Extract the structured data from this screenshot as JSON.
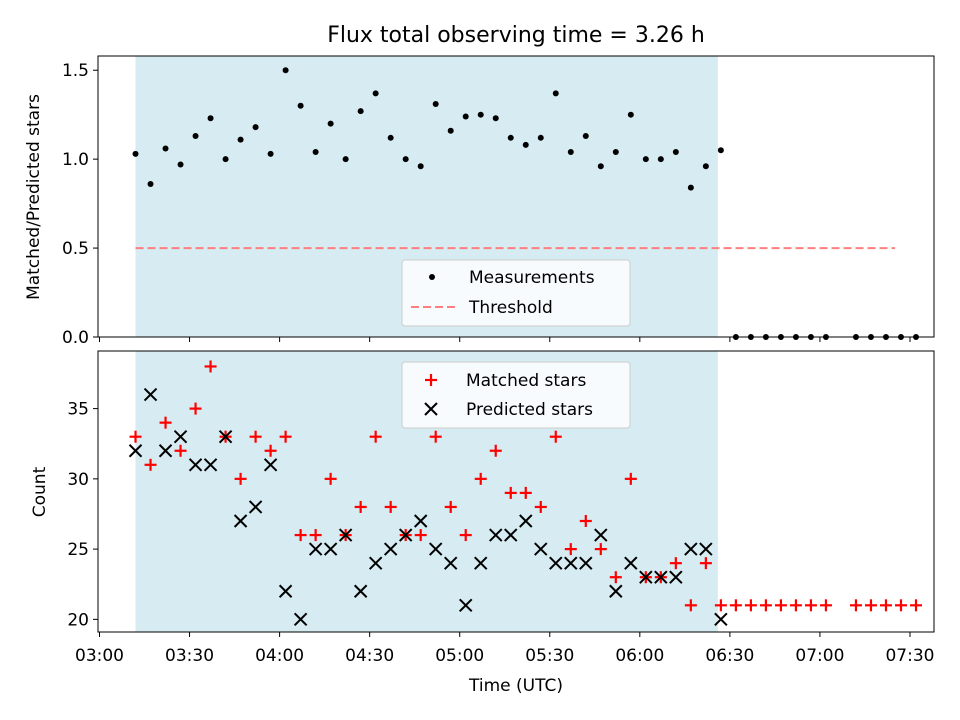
{
  "chart_data": [
    {
      "type": "scatter",
      "title": "Flux total observing time = 3.26 h",
      "xlabel": "",
      "ylabel": "Matched/Predicted stars",
      "ylim": [
        0,
        1.58
      ],
      "yticks": [
        "0.0",
        "0.5",
        "1.0",
        "1.5"
      ],
      "shaded_region_x_minutes": [
        12,
        206
      ],
      "series": [
        {
          "name": "Measurements",
          "marker": "dot",
          "color": "#000000",
          "x": [
            12,
            17,
            22,
            27,
            32,
            37,
            42,
            47,
            52,
            57,
            62,
            67,
            72,
            77,
            82,
            87,
            92,
            97,
            102,
            107,
            112,
            117,
            122,
            127,
            132,
            137,
            142,
            147,
            152,
            157,
            162,
            167,
            172,
            177,
            182,
            187,
            192,
            197,
            202,
            207,
            212,
            217,
            222,
            227,
            232,
            237,
            242,
            252,
            257,
            262,
            267,
            272
          ],
          "values": [
            1.03,
            0.86,
            1.06,
            0.97,
            1.13,
            1.23,
            1.0,
            1.11,
            1.18,
            1.03,
            1.5,
            1.3,
            1.04,
            1.2,
            1.0,
            1.27,
            1.37,
            1.12,
            1.0,
            0.96,
            1.31,
            1.16,
            1.24,
            1.25,
            1.23,
            1.12,
            1.08,
            1.12,
            1.37,
            1.04,
            1.13,
            0.96,
            1.04,
            1.25,
            1.0,
            1.0,
            1.04,
            0.84,
            0.96,
            1.05,
            0,
            0,
            0,
            0,
            0,
            0,
            0,
            0,
            0,
            0,
            0,
            0
          ]
        },
        {
          "name": "Threshold",
          "style": "dashed",
          "color": "#ff7f7f",
          "x": [
            12,
            265
          ],
          "values": [
            0.5,
            0.5
          ]
        }
      ],
      "legend": "bottom-center"
    },
    {
      "type": "scatter",
      "xlabel": "Time (UTC)",
      "ylabel": "Count",
      "ylim": [
        19.1,
        39.1
      ],
      "yticks": [
        "20",
        "25",
        "30",
        "35"
      ],
      "xlim_minutes": [
        -0.5,
        278
      ],
      "xticks": [
        "03:00",
        "03:30",
        "04:00",
        "04:30",
        "05:00",
        "05:30",
        "06:00",
        "06:30",
        "07:00",
        "07:30"
      ],
      "shaded_region_x_minutes": [
        12,
        206
      ],
      "series": [
        {
          "name": "Matched stars",
          "marker": "plus",
          "color": "#ff0000",
          "x": [
            12,
            17,
            22,
            27,
            32,
            37,
            42,
            47,
            52,
            57,
            62,
            67,
            72,
            77,
            82,
            87,
            92,
            97,
            102,
            107,
            112,
            117,
            122,
            127,
            132,
            137,
            142,
            147,
            152,
            157,
            162,
            167,
            172,
            177,
            182,
            187,
            192,
            197,
            202,
            207,
            212,
            217,
            222,
            227,
            232,
            237,
            242,
            252,
            257,
            262,
            267,
            272
          ],
          "values": [
            33,
            31,
            34,
            32,
            35,
            38,
            33,
            30,
            33,
            32,
            33,
            26,
            26,
            30,
            26,
            28,
            33,
            28,
            26,
            26,
            33,
            28,
            26,
            30,
            32,
            29,
            29,
            28,
            33,
            25,
            27,
            25,
            23,
            30,
            23,
            23,
            24,
            21,
            24,
            21,
            21,
            21,
            21,
            21,
            21,
            21,
            21,
            21,
            21,
            21,
            21,
            21
          ]
        },
        {
          "name": "Predicted stars",
          "marker": "x",
          "color": "#000000",
          "x": [
            12,
            17,
            22,
            27,
            32,
            37,
            42,
            47,
            52,
            57,
            62,
            67,
            72,
            77,
            82,
            87,
            92,
            97,
            102,
            107,
            112,
            117,
            122,
            127,
            132,
            137,
            142,
            147,
            152,
            157,
            162,
            167,
            172,
            177,
            182,
            187,
            192,
            197,
            202,
            207
          ],
          "values": [
            32,
            36,
            32,
            33,
            31,
            31,
            33,
            27,
            28,
            31,
            22,
            20,
            25,
            25,
            26,
            22,
            24,
            25,
            26,
            27,
            25,
            24,
            21,
            24,
            26,
            26,
            27,
            25,
            24,
            24,
            24,
            26,
            22,
            24,
            23,
            23,
            23,
            25,
            25,
            20
          ]
        }
      ],
      "legend": "top-center"
    }
  ]
}
